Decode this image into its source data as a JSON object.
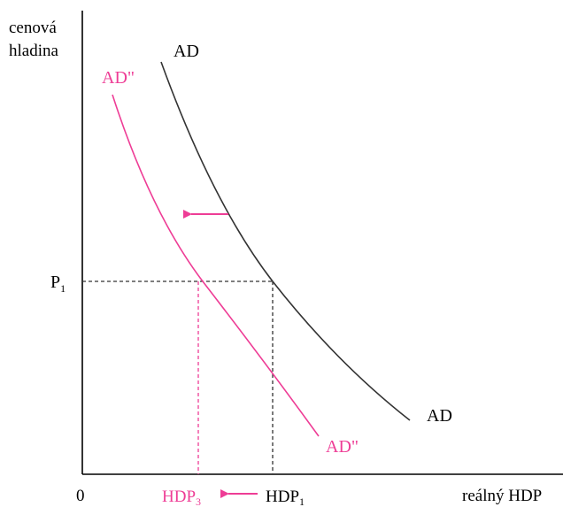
{
  "colors": {
    "axis": "#000000",
    "original_curve": "#333333",
    "shifted_curve": "#ee3d96",
    "guide_black": "#333333",
    "guide_pink": "#ee3d96"
  },
  "labels": {
    "y_axis_line1": "cenová",
    "y_axis_line2": "hladina",
    "x_axis": "reálný HDP",
    "origin": "0",
    "price_level_main": "P",
    "price_level_sub": "1",
    "hdp1_main": "HDP",
    "hdp1_sub": "1",
    "hdp3_main": "HDP",
    "hdp3_sub": "3",
    "ad_top": "AD",
    "ad_bottom": "AD",
    "ad2_top": "AD\"",
    "ad2_bottom": "AD\""
  },
  "icons": {
    "shift_arrow": "left-arrow-icon",
    "gdp_arrow": "left-arrow-icon"
  }
}
